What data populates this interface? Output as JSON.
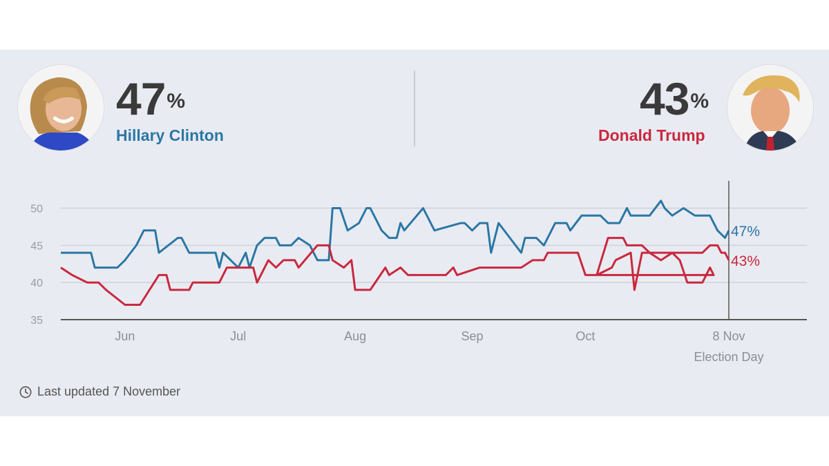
{
  "clinton": {
    "percent": "47",
    "percent_symbol": "%",
    "name": "Hillary Clinton",
    "avatar_icon": "clinton-photo-icon",
    "color": "#2a77a4"
  },
  "trump": {
    "percent": "43",
    "percent_symbol": "%",
    "name": "Donald Trump",
    "avatar_icon": "trump-photo-icon",
    "color": "#c9283e"
  },
  "footer": {
    "updated_text": "Last updated 7 November",
    "icon": "clock-icon"
  },
  "chart_data": {
    "type": "line",
    "x_range": [
      "2016-05-15",
      "2016-11-08"
    ],
    "ylim": [
      35,
      52
    ],
    "yticks": [
      35,
      40,
      45,
      50
    ],
    "xticks": [
      {
        "date": "2016-06-01",
        "label": "Jun"
      },
      {
        "date": "2016-07-01",
        "label": "Jul"
      },
      {
        "date": "2016-08-01",
        "label": "Aug"
      },
      {
        "date": "2016-09-01",
        "label": "Sep"
      },
      {
        "date": "2016-10-01",
        "label": "Oct"
      },
      {
        "date": "2016-11-08",
        "label": "8 Nov"
      }
    ],
    "marker": {
      "date": "2016-11-08",
      "label": "Election Day"
    },
    "grid": true,
    "series": [
      {
        "name": "Hillary Clinton",
        "color": "#2a77a4",
        "end_label": "47%",
        "points": [
          [
            "2016-05-15",
            44
          ],
          [
            "2016-05-23",
            44
          ],
          [
            "2016-05-24",
            42
          ],
          [
            "2016-05-30",
            42
          ],
          [
            "2016-06-01",
            43
          ],
          [
            "2016-06-04",
            45
          ],
          [
            "2016-06-06",
            47
          ],
          [
            "2016-06-09",
            47
          ],
          [
            "2016-06-10",
            44
          ],
          [
            "2016-06-15",
            46
          ],
          [
            "2016-06-16",
            46
          ],
          [
            "2016-06-18",
            44
          ],
          [
            "2016-06-25",
            44
          ],
          [
            "2016-06-26",
            42
          ],
          [
            "2016-06-27",
            44
          ],
          [
            "2016-07-01",
            42
          ],
          [
            "2016-07-03",
            44
          ],
          [
            "2016-07-04",
            42
          ],
          [
            "2016-07-06",
            45
          ],
          [
            "2016-07-08",
            46
          ],
          [
            "2016-07-11",
            46
          ],
          [
            "2016-07-12",
            45
          ],
          [
            "2016-07-15",
            45
          ],
          [
            "2016-07-17",
            46
          ],
          [
            "2016-07-20",
            45
          ],
          [
            "2016-07-22",
            43
          ],
          [
            "2016-07-25",
            43
          ],
          [
            "2016-07-26",
            50
          ],
          [
            "2016-07-28",
            50
          ],
          [
            "2016-07-30",
            47
          ],
          [
            "2016-08-02",
            48
          ],
          [
            "2016-08-04",
            50
          ],
          [
            "2016-08-05",
            50
          ],
          [
            "2016-08-08",
            47
          ],
          [
            "2016-08-10",
            46
          ],
          [
            "2016-08-12",
            46
          ],
          [
            "2016-08-13",
            48
          ],
          [
            "2016-08-14",
            47
          ],
          [
            "2016-08-19",
            50
          ],
          [
            "2016-08-22",
            47
          ],
          [
            "2016-08-29",
            48
          ],
          [
            "2016-08-30",
            48
          ],
          [
            "2016-09-01",
            47
          ],
          [
            "2016-09-03",
            48
          ],
          [
            "2016-09-05",
            48
          ],
          [
            "2016-09-06",
            44
          ],
          [
            "2016-09-08",
            48
          ],
          [
            "2016-09-14",
            44
          ],
          [
            "2016-09-15",
            46
          ],
          [
            "2016-09-18",
            46
          ],
          [
            "2016-09-20",
            45
          ],
          [
            "2016-09-23",
            48
          ],
          [
            "2016-09-26",
            48
          ],
          [
            "2016-09-27",
            47
          ],
          [
            "2016-09-30",
            49
          ],
          [
            "2016-10-05",
            49
          ],
          [
            "2016-10-07",
            48
          ],
          [
            "2016-10-10",
            48
          ],
          [
            "2016-10-12",
            50
          ],
          [
            "2016-10-13",
            49
          ],
          [
            "2016-10-18",
            49
          ],
          [
            "2016-10-21",
            51
          ],
          [
            "2016-10-22",
            50
          ],
          [
            "2016-10-24",
            49
          ],
          [
            "2016-10-27",
            50
          ],
          [
            "2016-10-30",
            49
          ],
          [
            "2016-11-03",
            49
          ],
          [
            "2016-11-05",
            47
          ],
          [
            "2016-11-07",
            46
          ],
          [
            "2016-11-08",
            47
          ]
        ]
      },
      {
        "name": "Donald Trump",
        "color": "#c9283e",
        "end_label": "43%",
        "points": [
          [
            "2016-05-15",
            42
          ],
          [
            "2016-05-18",
            41
          ],
          [
            "2016-05-22",
            40
          ],
          [
            "2016-05-25",
            40
          ],
          [
            "2016-05-27",
            39
          ],
          [
            "2016-06-01",
            37
          ],
          [
            "2016-06-05",
            37
          ],
          [
            "2016-06-10",
            41
          ],
          [
            "2016-06-12",
            41
          ],
          [
            "2016-06-13",
            39
          ],
          [
            "2016-06-18",
            39
          ],
          [
            "2016-06-19",
            40
          ],
          [
            "2016-06-26",
            40
          ],
          [
            "2016-06-28",
            42
          ],
          [
            "2016-07-03",
            42
          ],
          [
            "2016-07-05",
            42
          ],
          [
            "2016-07-06",
            40
          ],
          [
            "2016-07-09",
            43
          ],
          [
            "2016-07-11",
            42
          ],
          [
            "2016-07-13",
            43
          ],
          [
            "2016-07-16",
            43
          ],
          [
            "2016-07-17",
            42
          ],
          [
            "2016-07-22",
            45
          ],
          [
            "2016-07-25",
            45
          ],
          [
            "2016-07-26",
            43
          ],
          [
            "2016-07-29",
            42
          ],
          [
            "2016-07-31",
            43
          ],
          [
            "2016-08-01",
            39
          ],
          [
            "2016-08-05",
            39
          ],
          [
            "2016-08-09",
            42
          ],
          [
            "2016-08-10",
            41
          ],
          [
            "2016-08-13",
            42
          ],
          [
            "2016-08-15",
            41
          ],
          [
            "2016-08-19",
            41
          ],
          [
            "2016-08-21",
            41
          ],
          [
            "2016-08-25",
            41
          ],
          [
            "2016-08-27",
            42
          ],
          [
            "2016-08-28",
            41
          ],
          [
            "2016-09-03",
            42
          ],
          [
            "2016-09-05",
            42
          ],
          [
            "2016-09-10",
            42
          ],
          [
            "2016-09-14",
            42
          ],
          [
            "2016-09-17",
            43
          ],
          [
            "2016-09-20",
            43
          ],
          [
            "2016-09-21",
            44
          ],
          [
            "2016-09-26",
            44
          ],
          [
            "2016-09-29",
            44
          ],
          [
            "2016-10-01",
            41
          ],
          [
            "2016-10-04",
            41
          ],
          [
            "2016-10-07",
            46
          ],
          [
            "2016-10-11",
            46
          ],
          [
            "2016-10-12",
            45
          ],
          [
            "2016-10-16",
            45
          ],
          [
            "2016-10-18",
            44
          ],
          [
            "2016-10-21",
            43
          ],
          [
            "2016-10-24",
            44
          ],
          [
            "2016-10-26",
            43
          ],
          [
            "2016-10-28",
            40
          ],
          [
            "2016-11-01",
            40
          ],
          [
            "2016-11-02",
            41
          ],
          [
            "2016-11-03",
            42
          ],
          [
            "2016-11-04",
            41
          ],
          [
            "2016-10-04",
            41
          ],
          [
            "2016-10-08",
            42
          ],
          [
            "2016-10-09",
            43
          ],
          [
            "2016-10-13",
            44
          ],
          [
            "2016-10-14",
            39
          ],
          [
            "2016-10-16",
            44
          ],
          [
            "2016-10-20",
            44
          ],
          [
            "2016-11-01",
            44
          ],
          [
            "2016-11-03",
            45
          ],
          [
            "2016-11-05",
            45
          ],
          [
            "2016-11-06",
            44
          ],
          [
            "2016-11-07",
            44
          ],
          [
            "2016-11-08",
            43
          ]
        ]
      }
    ]
  }
}
